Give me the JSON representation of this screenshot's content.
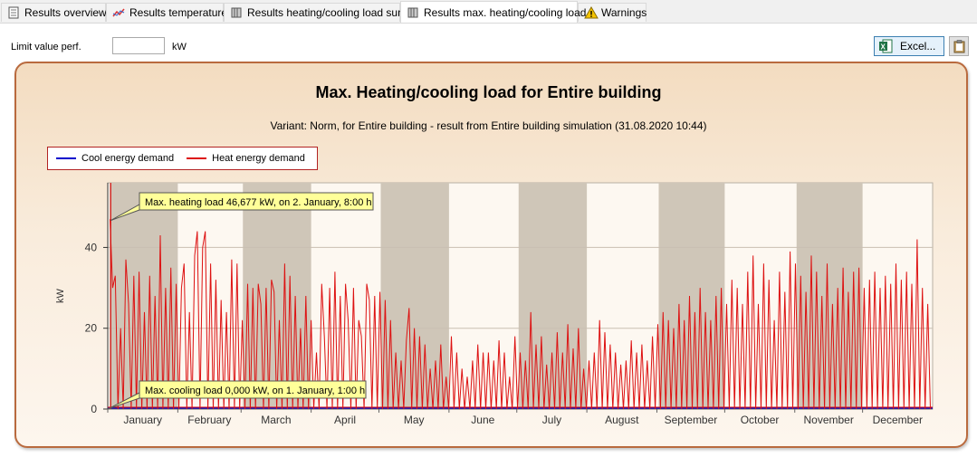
{
  "tabs": [
    {
      "label": "Results overview",
      "icon": "table-icon"
    },
    {
      "label": "Results temperature",
      "icon": "line-chart-icon"
    },
    {
      "label": "Results heating/cooling load sums",
      "icon": "radiator-icon"
    },
    {
      "label": "Results max. heating/cooling load",
      "icon": "radiator-icon",
      "active": true
    },
    {
      "label": "Warnings",
      "icon": "warning-icon"
    }
  ],
  "controls": {
    "limit_label": "Limit value perf.",
    "limit_value": "",
    "limit_unit": "kW",
    "excel_label": "Excel...",
    "clipboard_icon": "clipboard-icon"
  },
  "chart_data": {
    "type": "line",
    "title": "Max. Heating/cooling load for Entire building",
    "subtitle": "Variant: Norm, for Entire building - result from Entire building simulation (31.08.2020 10:44)",
    "ylabel": "kW",
    "ylim": [
      0,
      56
    ],
    "yticks": [
      0,
      20,
      40
    ],
    "grid": true,
    "legend_position": "top-left",
    "months": [
      "January",
      "February",
      "March",
      "April",
      "May",
      "June",
      "July",
      "August",
      "September",
      "October",
      "November",
      "December"
    ],
    "series": [
      {
        "name": "Cool energy demand",
        "color": "#0000cc",
        "values": [
          0
        ]
      },
      {
        "name": "Heat energy demand",
        "color": "#dd1111",
        "peaks": [
          47,
          30,
          33,
          0,
          20,
          0,
          37,
          26,
          0,
          33,
          0,
          34,
          0,
          24,
          0,
          33,
          0,
          28,
          0,
          43,
          0,
          30,
          0,
          35,
          0,
          31,
          0,
          30,
          36,
          0,
          24,
          0,
          38,
          44,
          0,
          40,
          44,
          0,
          36,
          0,
          32,
          0,
          27,
          0,
          24,
          0,
          37,
          0,
          36,
          0,
          22,
          0,
          31,
          0,
          30,
          0,
          31,
          26,
          0,
          30,
          0,
          32,
          29,
          0,
          22,
          0,
          36,
          0,
          33,
          0,
          28,
          0,
          20,
          0,
          28,
          0,
          22,
          0,
          14,
          0,
          31,
          18,
          0,
          30,
          0,
          34,
          0,
          28,
          0,
          31,
          22,
          0,
          30,
          0,
          22,
          18,
          0,
          31,
          27,
          0,
          28,
          0,
          29,
          0,
          27,
          0,
          22,
          0,
          14,
          0,
          12,
          0,
          17,
          25,
          0,
          20,
          0,
          18,
          0,
          16,
          0,
          10,
          0,
          12,
          0,
          16,
          0,
          8,
          0,
          18,
          0,
          14,
          0,
          10,
          0,
          8,
          0,
          12,
          0,
          16,
          0,
          14,
          0,
          14,
          0,
          12,
          0,
          17,
          0,
          14,
          0,
          8,
          0,
          18,
          0,
          14,
          0,
          12,
          0,
          24,
          0,
          16,
          0,
          18,
          0,
          11,
          0,
          14,
          0,
          19,
          0,
          14,
          0,
          21,
          0,
          15,
          0,
          20,
          0,
          10,
          0,
          12,
          0,
          14,
          0,
          22,
          0,
          19,
          0,
          16,
          0,
          14,
          0,
          11,
          0,
          12,
          0,
          17,
          0,
          14,
          0,
          16,
          0,
          12,
          0,
          18,
          0,
          21,
          0,
          24,
          0,
          22,
          0,
          20,
          0,
          26,
          0,
          22,
          0,
          28,
          0,
          24,
          0,
          30,
          0,
          24,
          0,
          22,
          0,
          28,
          0,
          30,
          0,
          26,
          0,
          32,
          0,
          30,
          0,
          26,
          0,
          34,
          0,
          38,
          0,
          26,
          0,
          36,
          0,
          32,
          0,
          22,
          0,
          34,
          0,
          29,
          0,
          39,
          0,
          36,
          0,
          33,
          0,
          29,
          0,
          38,
          0,
          34,
          0,
          28,
          0,
          36,
          0,
          26,
          0,
          30,
          0,
          35,
          0,
          29,
          0,
          34,
          0,
          35,
          0,
          30,
          0,
          32,
          0,
          34,
          0,
          30,
          0,
          33,
          0,
          31,
          0,
          36,
          0,
          32,
          0,
          34,
          0,
          31,
          0,
          42,
          0,
          30,
          0,
          26,
          0
        ]
      }
    ],
    "annotations": [
      {
        "text": "Max. heating load 46,677 kW, on 2. January, 8:00 h",
        "x_day": 1.3,
        "y": 46.677
      },
      {
        "text": "Max. cooling load 0,000 kW, on 1. January, 1:00 h",
        "x_day": 0.04,
        "y": 0
      }
    ]
  }
}
